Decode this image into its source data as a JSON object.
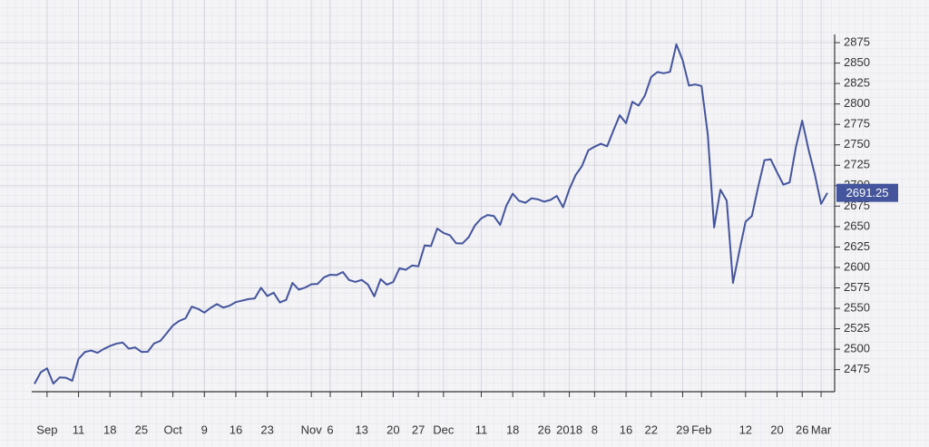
{
  "chart_data": {
    "type": "line",
    "categories": [
      null,
      null,
      "Sep",
      null,
      null,
      null,
      null,
      "11",
      null,
      null,
      null,
      null,
      "18",
      null,
      null,
      null,
      null,
      "25",
      null,
      null,
      null,
      null,
      "Oct",
      null,
      null,
      null,
      null,
      "9",
      null,
      null,
      null,
      null,
      "16",
      null,
      null,
      null,
      null,
      "23",
      null,
      null,
      null,
      null,
      null,
      null,
      "Nov",
      null,
      null,
      "6",
      null,
      null,
      null,
      null,
      "13",
      null,
      null,
      null,
      null,
      "20",
      null,
      null,
      null,
      "27",
      null,
      null,
      null,
      "Dec",
      null,
      null,
      null,
      null,
      null,
      "11",
      null,
      null,
      null,
      null,
      "18",
      null,
      null,
      null,
      null,
      "26",
      null,
      null,
      null,
      "2018",
      null,
      null,
      null,
      "8",
      null,
      null,
      null,
      null,
      "16",
      null,
      null,
      null,
      "22",
      null,
      null,
      null,
      null,
      "29",
      null,
      null,
      "Feb",
      null,
      null,
      null,
      null,
      null,
      null,
      "12",
      null,
      null,
      null,
      null,
      "20",
      null,
      null,
      null,
      "26",
      null,
      null,
      "Mar",
      null
    ],
    "series": [
      {
        "color": "#44559e",
        "values": [
          2457.6,
          2471.7,
          2476.6,
          2457.9,
          2465.5,
          2465.1,
          2461.4,
          2488.1,
          2496.5,
          2498.4,
          2495.6,
          2500.2,
          2503.9,
          2506.7,
          2508.2,
          2500.6,
          2502.2,
          2496.7,
          2496.8,
          2507.0,
          2510.1,
          2519.4,
          2529.1,
          2534.6,
          2537.7,
          2552.1,
          2549.3,
          2544.7,
          2550.6,
          2555.2,
          2550.9,
          2553.2,
          2557.6,
          2559.4,
          2561.3,
          2562.1,
          2575.2,
          2565.0,
          2569.1,
          2557.2,
          2560.4,
          2581.1,
          2572.8,
          2575.3,
          2579.4,
          2579.9,
          2587.8,
          2591.1,
          2590.6,
          2594.4,
          2584.6,
          2582.3,
          2584.8,
          2578.9,
          2564.6,
          2585.6,
          2578.9,
          2582.1,
          2599.0,
          2597.1,
          2602.4,
          2601.4,
          2627.0,
          2626.1,
          2647.6,
          2642.2,
          2639.4,
          2629.6,
          2629.3,
          2637.0,
          2651.5,
          2660.0,
          2664.1,
          2662.9,
          2652.0,
          2675.8,
          2690.2,
          2681.5,
          2679.1,
          2684.6,
          2683.3,
          2680.5,
          2682.6,
          2687.5,
          2673.6,
          2695.8,
          2713.1,
          2724.0,
          2743.2,
          2747.7,
          2751.3,
          2748.2,
          2767.6,
          2786.2,
          2776.4,
          2802.6,
          2798.0,
          2810.3,
          2833.0,
          2839.1,
          2837.5,
          2839.3,
          2872.9,
          2853.5,
          2822.4,
          2823.8,
          2822.0,
          2762.1,
          2648.9,
          2695.1,
          2681.7,
          2581.0,
          2619.6,
          2656.0,
          2662.9,
          2698.6,
          2731.2,
          2732.2,
          2716.3,
          2701.3,
          2704.0,
          2747.3,
          2779.6,
          2744.3,
          2713.8,
          2677.7,
          2691.25
        ]
      }
    ],
    "ylim": [
      2448,
      2885
    ],
    "yticks": [
      2475,
      2500,
      2525,
      2550,
      2575,
      2600,
      2625,
      2650,
      2675,
      2700,
      2725,
      2750,
      2775,
      2800,
      2825,
      2850,
      2875
    ],
    "grid": true
  }
}
